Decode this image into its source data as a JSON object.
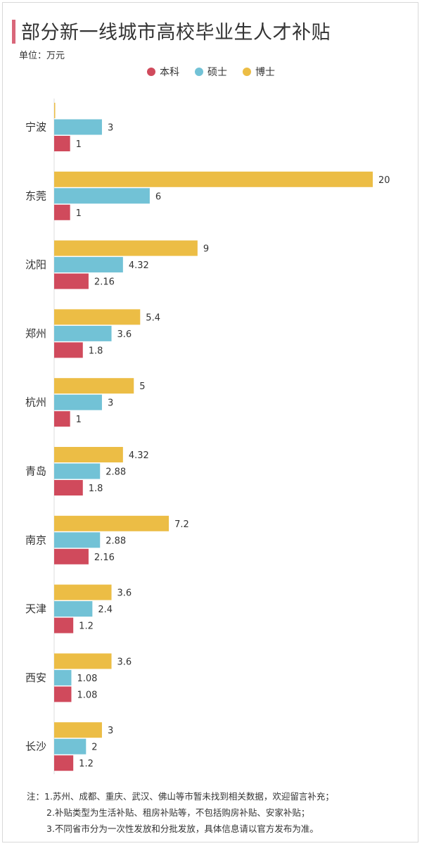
{
  "header": {
    "title": "部分新一线城市高校毕业生人才补贴",
    "unit": "单位：万元"
  },
  "colors": {
    "benke": "#d04a5c",
    "shuoshi": "#72c2d6",
    "boshi": "#ecbd45"
  },
  "chart_data": {
    "type": "bar",
    "orientation": "horizontal",
    "categories": [
      "宁波",
      "东莞",
      "沈阳",
      "郑州",
      "杭州",
      "青岛",
      "南京",
      "天津",
      "西安",
      "长沙"
    ],
    "series": [
      {
        "name": "博士",
        "key": "boshi",
        "values": [
          null,
          20,
          9,
          5.4,
          5,
          4.32,
          7.2,
          3.6,
          3.6,
          3
        ]
      },
      {
        "name": "硕士",
        "key": "shuoshi",
        "values": [
          3,
          6,
          4.32,
          3.6,
          3,
          2.88,
          2.88,
          2.4,
          1.08,
          2
        ]
      },
      {
        "name": "本科",
        "key": "benke",
        "values": [
          1,
          1,
          2.16,
          1.8,
          1,
          1.8,
          2.16,
          1.2,
          1.08,
          1.2
        ]
      }
    ],
    "legend_order": [
      "本科",
      "硕士",
      "博士"
    ],
    "legend_position": "top-center",
    "xlim": [
      0,
      20
    ],
    "grid": false
  },
  "notes": {
    "line1": "注：1.苏州、成都、重庆、武汉、佛山等市暂未找到相关数据，欢迎留言补充；",
    "line2": "2.补贴类型为生活补贴、租房补贴等，不包括购房补贴、安家补贴；",
    "line3": "3.不同省市分为一次性发放和分批发放，具体信息请以官方发布为准。"
  }
}
